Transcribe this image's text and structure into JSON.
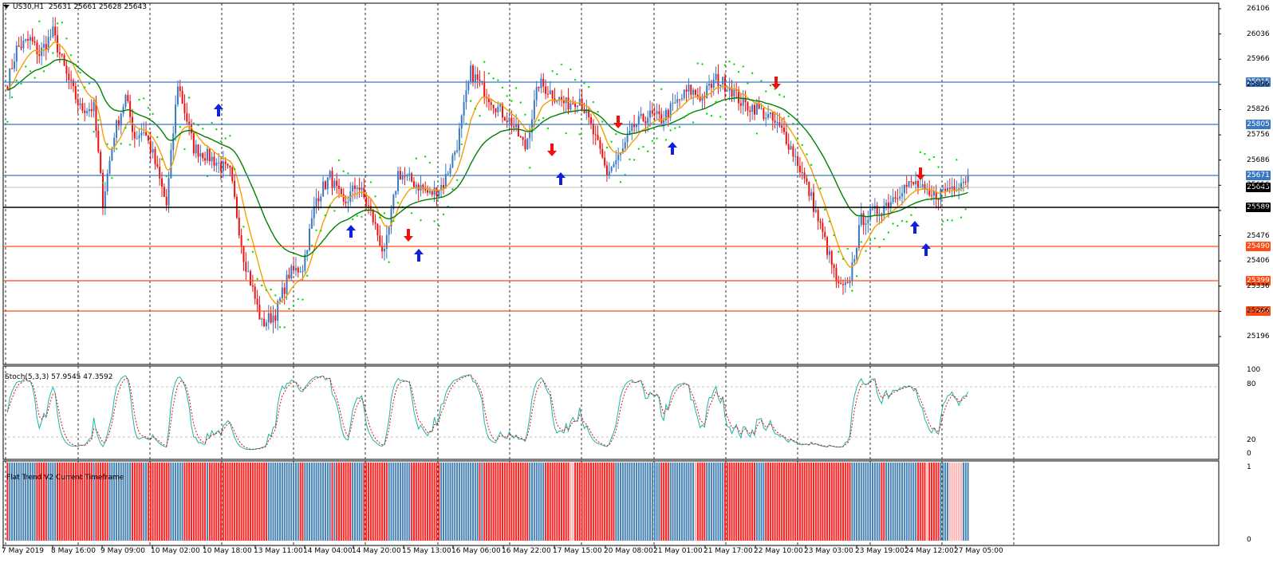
{
  "window": {
    "symbol_tf": "US30,H1",
    "ohlc": "25631 25661 25628 25643"
  },
  "price_axis": {
    "ticks": [
      "26106",
      "26036",
      "25966",
      "25896",
      "25826",
      "25756",
      "25686",
      "25616",
      "25546",
      "25476",
      "25406",
      "25336",
      "25266",
      "25196"
    ]
  },
  "levels": [
    {
      "label": "25915",
      "color": "#3a78c3"
    },
    {
      "label": "25805",
      "color": "#3a78c3"
    },
    {
      "label": "25671",
      "color": "#3a78c3"
    },
    {
      "label": "25643",
      "color": "#000000"
    },
    {
      "label": "25589",
      "color": "#000000"
    },
    {
      "label": "25490",
      "color": "#ff4a14"
    },
    {
      "label": "25399",
      "color": "#ff4a14"
    },
    {
      "label": "25322",
      "color": "#ff4a14"
    }
  ],
  "stoch": {
    "title": "Stoch(5,3,3) 57.9545 47.3592",
    "axis": [
      "100",
      "80",
      "20",
      "0"
    ]
  },
  "flat_trend": {
    "title": "Flat Trend V2 Current Timeframe",
    "axis": [
      "1",
      "0"
    ]
  },
  "time_axis": [
    "7 May 2019",
    "8 May 16:00",
    "9 May 09:00",
    "10 May 02:00",
    "10 May 18:00",
    "13 May 11:00",
    "14 May 04:00",
    "14 May 20:00",
    "15 May 13:00",
    "16 May 06:00",
    "16 May 22:00",
    "17 May 15:00",
    "20 May 08:00",
    "21 May 01:00",
    "21 May 17:00",
    "22 May 10:00",
    "23 May 03:00",
    "23 May 19:00",
    "24 May 12:00",
    "27 May 05:00"
  ],
  "colors": {
    "bull": "#3a78c3",
    "bear": "#f01010",
    "ma_fast": "#f5a000",
    "ma_slow": "#008000",
    "psar": "#00e000",
    "stoch_main": "#20b2aa",
    "stoch_signal": "#e01010",
    "ft_up": "#4682b4",
    "ft_down": "#ff2020",
    "ft_weak": "#ffb0b0"
  }
}
